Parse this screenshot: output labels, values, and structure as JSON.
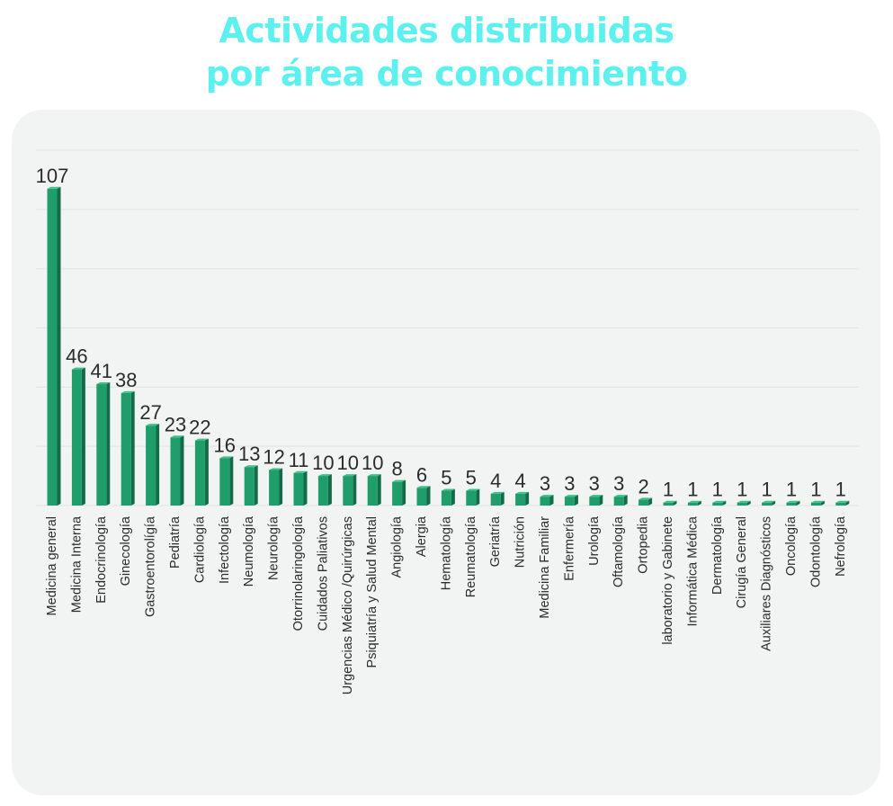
{
  "title_line1": "Actividades distribuidas",
  "title_line2": "por área de conocimiento",
  "colors": {
    "title": "#5cf0ee",
    "bar_front": "#1f9e6c",
    "bar_side": "#136b47",
    "bar_top": "#3bc28a",
    "panel": "#f2f4f3",
    "grid": "#e2e6e5",
    "text": "#2b2b2b"
  },
  "chart_data": {
    "type": "bar",
    "title": "Actividades distribuidas por área de conocimiento",
    "xlabel": "",
    "ylabel": "",
    "ylim": [
      0,
      120
    ],
    "grid": true,
    "legend": "none",
    "categories": [
      "Medicina general",
      "Medicina Interna",
      "Endocrinología",
      "Ginecología",
      "Gastroentorolígía",
      "Pediatría",
      "Cardiología",
      "Infectología",
      "Neumología",
      "Neurología",
      "Otorrinolaringología",
      "Cuidados Paliativos",
      "Urgencias Médico /Quirúrgicas",
      "Psiquiatría y Salud Mental",
      "Angiología",
      "Alergia",
      "Hematología",
      "Reumatología",
      "Geriatría",
      "Nutrición",
      "Medicina Familiar",
      "Enfermería",
      "Urología",
      "Oftamología",
      "Ortopedia",
      "laboratorio y Gabinete",
      "Informática Médica",
      "Dermatología",
      "Cirugía General",
      "Auxiliares Diagnósticos",
      "Oncología",
      "Odontología",
      "Nefrología"
    ],
    "values": [
      107,
      46,
      41,
      38,
      27,
      23,
      22,
      16,
      13,
      12,
      11,
      10,
      10,
      10,
      8,
      6,
      5,
      5,
      4,
      4,
      3,
      3,
      3,
      3,
      2,
      1,
      1,
      1,
      1,
      1,
      1,
      1,
      1
    ]
  }
}
